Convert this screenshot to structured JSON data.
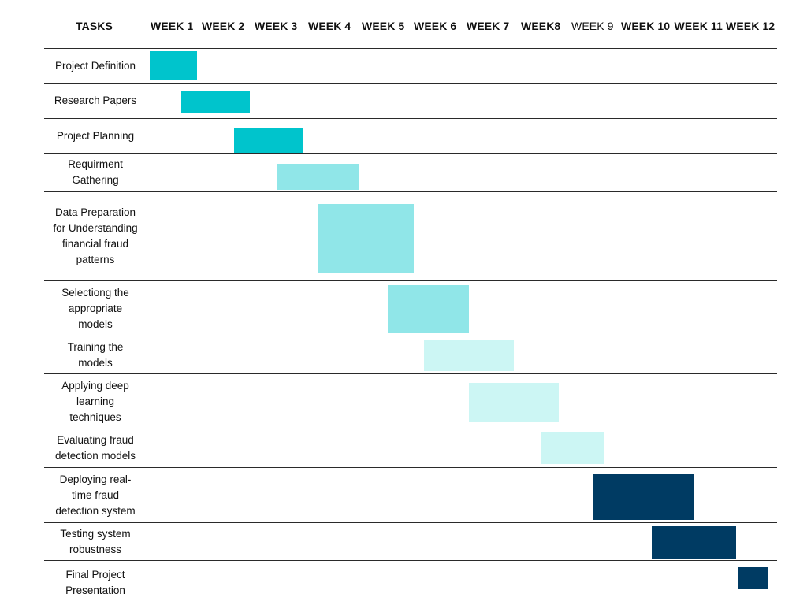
{
  "chart_data": {
    "type": "gantt",
    "header_label": "TASKS",
    "weeks": [
      {
        "label": "WEEK 1",
        "bold": true
      },
      {
        "label": "WEEK 2",
        "bold": true
      },
      {
        "label": "WEEK 3",
        "bold": true
      },
      {
        "label": "WEEK 4",
        "bold": true
      },
      {
        "label": "WEEK 5",
        "bold": true
      },
      {
        "label": "WEEK 6",
        "bold": true
      },
      {
        "label": "WEEK 7",
        "bold": true
      },
      {
        "label": "WEEK8",
        "bold": true
      },
      {
        "label": "WEEK 9",
        "bold": false
      },
      {
        "label": "WEEK 10",
        "bold": true
      },
      {
        "label": "WEEK 11",
        "bold": true
      },
      {
        "label": "WEEK 12",
        "bold": true
      }
    ],
    "tasks": [
      {
        "name": "Project Definition",
        "start_week": 1.0,
        "end_week": 1.9,
        "color": "#00c4cc"
      },
      {
        "name": "Research Papers",
        "start_week": 1.6,
        "end_week": 2.9,
        "color": "#00c4cc"
      },
      {
        "name": "Project Planning",
        "start_week": 2.6,
        "end_week": 3.9,
        "color": "#00c4cc"
      },
      {
        "name": "Requirment\nGathering",
        "start_week": 3.4,
        "end_week": 4.95,
        "color": "#90e6e8"
      },
      {
        "name": "Data Preparation\nfor Understanding\nfinancial fraud\npatterns",
        "start_week": 4.2,
        "end_week": 6.0,
        "color": "#90e6e8"
      },
      {
        "name": "Selectiong the\nappropriate\nmodels",
        "start_week": 5.5,
        "end_week": 7.05,
        "color": "#90e6e8"
      },
      {
        "name": "Training the\nmodels",
        "start_week": 6.2,
        "end_week": 7.9,
        "color": "#ccf6f4"
      },
      {
        "name": "Applying deep\nlearning\ntechniques",
        "start_week": 7.05,
        "end_week": 8.75,
        "color": "#ccf6f4"
      },
      {
        "name": "Evaluating fraud\ndetection models",
        "start_week": 8.4,
        "end_week": 9.6,
        "color": "#ccf6f4"
      },
      {
        "name": "Deploying real-\ntime fraud\ndetection system",
        "start_week": 9.4,
        "end_week": 11.3,
        "color": "#003b63"
      },
      {
        "name": "Testing system\nrobustness",
        "start_week": 10.5,
        "end_week": 12.1,
        "color": "#003b63"
      },
      {
        "name": "Final Project\nPresentation",
        "start_week": 12.15,
        "end_week": 12.7,
        "color": "#003b63"
      }
    ]
  }
}
